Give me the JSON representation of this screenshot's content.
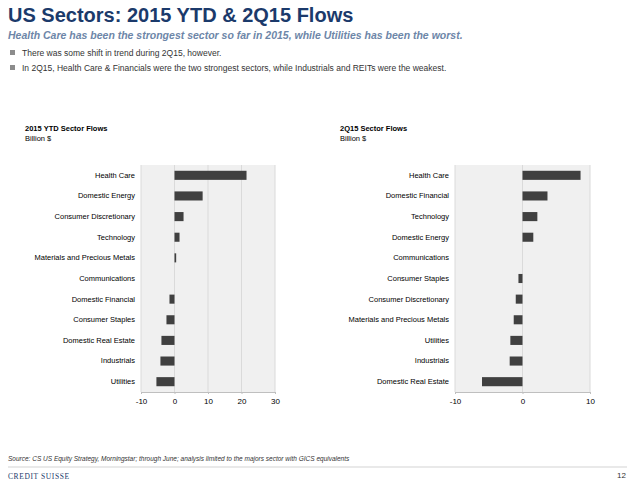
{
  "header": {
    "title": "US Sectors: 2015 YTD & 2Q15 Flows",
    "subtitle": "Health Care has been the strongest sector so far in 2015, while Utilities has been the worst.",
    "bullets": [
      "There was some shift in trend during 2Q15, however.",
      "In 2Q15, Health Care & Financials were the two strongest sectors, while Industrials and REITs were the weakest."
    ]
  },
  "chart_data": [
    {
      "type": "bar",
      "orientation": "horizontal",
      "title": "2015 YTD Sector Flows",
      "subtitle": "Billion $",
      "categories": [
        "Health Care",
        "Domestic Energy",
        "Consumer Discretionary",
        "Technology",
        "Materials and Precious Metals",
        "Communications",
        "Domestic Financial",
        "Consumer Staples",
        "Domestic Real Estate",
        "Industrials",
        "Utilities"
      ],
      "values": [
        21.5,
        8.4,
        2.7,
        1.5,
        0.5,
        0,
        -1.5,
        -2.4,
        -3.9,
        -4.2,
        -5.4
      ],
      "color": "#404040",
      "xlim": [
        -10,
        30
      ],
      "xticks": [
        -10,
        0,
        10,
        20,
        30
      ],
      "grid": true
    },
    {
      "type": "bar",
      "orientation": "horizontal",
      "title": "2Q15 Sector Flows",
      "subtitle": "Billion $",
      "categories": [
        "Health Care",
        "Domestic Financial",
        "Technology",
        "Domestic Energy",
        "Communications",
        "Consumer Staples",
        "Consumer Discretionary",
        "Materials and Precious Metals",
        "Utilities",
        "Industrials",
        "Domestic Real Estate"
      ],
      "values": [
        8.6,
        3.7,
        2.2,
        1.6,
        0,
        -0.6,
        -1.0,
        -1.3,
        -1.8,
        -1.9,
        -6.0
      ],
      "color": "#404040",
      "xlim": [
        -10,
        10
      ],
      "xticks": [
        -10,
        0,
        10
      ],
      "grid": true
    }
  ],
  "footer": {
    "source": "Source: CS US Equity Strategy, Morningstar; through June; analysis limited to the majors sector with GICS equivalents",
    "page_number": "12",
    "logo": "CREDIT SUISSE"
  }
}
